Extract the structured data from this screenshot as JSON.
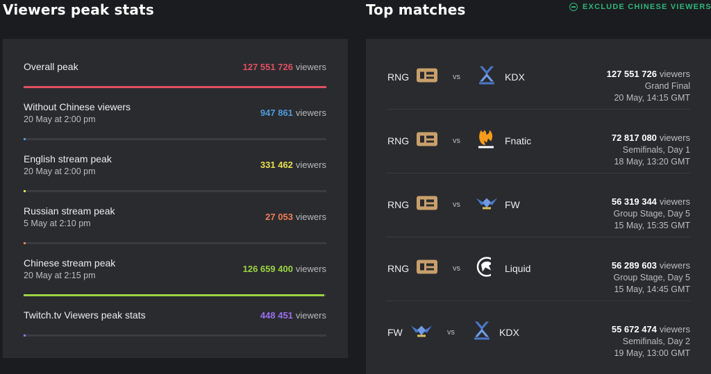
{
  "headers": {
    "left_title": "Viewers peak stats",
    "right_title": "Top matches",
    "exclude_label": "EXCLUDE CHINESE VIEWERS"
  },
  "unit": "viewers",
  "vs": "vs",
  "stats": [
    {
      "label": "Overall peak",
      "date": "",
      "value": "127 551 726",
      "color": "#e0505f",
      "fill_fraction": 1.0
    },
    {
      "label": "Without Chinese viewers",
      "date": "20 May at 2:00 pm",
      "value": "947 861",
      "color": "#4f9bdb",
      "fill_fraction": 0.0074
    },
    {
      "label": "English stream peak",
      "date": "20 May at 2:00 pm",
      "value": "331 462",
      "color": "#e8df4f",
      "fill_fraction": 0.0026
    },
    {
      "label": "Russian stream peak",
      "date": "5 May at 2:10 pm",
      "value": "27 053",
      "color": "#ef7e54",
      "fill_fraction": 0.0002
    },
    {
      "label": "Chinese stream peak",
      "date": "20 May at 2:15 pm",
      "value": "126 659 400",
      "color": "#9ad443",
      "fill_fraction": 0.993
    },
    {
      "label": "Twitch.tv Viewers peak stats",
      "date": "",
      "value": "448 451",
      "color": "#9a6ff0",
      "fill_fraction": 0.0035
    }
  ],
  "matches": [
    {
      "team1": "RNG",
      "team1_logo": "rng-logo",
      "team2": "KDX",
      "team2_logo": "kingzone-dragonx-logo",
      "viewers": "127 551 726",
      "stage": "Grand Final",
      "time": "20 May, 14:15 GMT"
    },
    {
      "team1": "RNG",
      "team1_logo": "rng-logo",
      "team2": "Fnatic",
      "team2_logo": "fnatic-logo",
      "viewers": "72 817 080",
      "stage": "Semifinals, Day 1",
      "time": "18 May, 13:20 GMT"
    },
    {
      "team1": "RNG",
      "team1_logo": "rng-logo",
      "team2": "FW",
      "team2_logo": "flash-wolves-logo",
      "viewers": "56 319 344",
      "stage": "Group Stage, Day 5",
      "time": "15 May, 15:35 GMT"
    },
    {
      "team1": "RNG",
      "team1_logo": "rng-logo",
      "team2": "Liquid",
      "team2_logo": "team-liquid-logo",
      "viewers": "56 289 603",
      "stage": "Group Stage, Day 5",
      "time": "15 May, 14:45 GMT"
    },
    {
      "team1": "FW",
      "team1_logo": "flash-wolves-logo",
      "team2": "KDX",
      "team2_logo": "kingzone-dragonx-logo",
      "viewers": "55 672 474",
      "stage": "Semifinals, Day 2",
      "time": "19 May, 13:00 GMT"
    }
  ]
}
